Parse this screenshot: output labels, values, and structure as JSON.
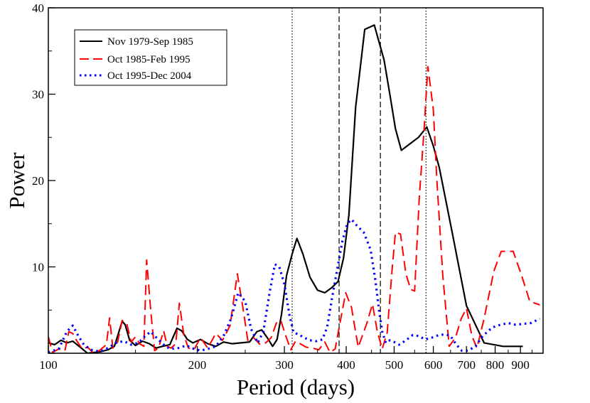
{
  "chart_data": {
    "type": "line",
    "xscale": "log",
    "xlabel": "Period (days)",
    "ylabel": "Power",
    "xlim": [
      100,
      1000
    ],
    "ylim": [
      0,
      40
    ],
    "xticks_major": [
      100,
      200,
      300,
      400,
      500,
      600,
      700,
      800,
      900
    ],
    "xtick_labels": [
      "100",
      "200",
      "300",
      "400",
      "500",
      "600",
      "700",
      "800",
      "900"
    ],
    "yticks_major": [
      0,
      10,
      20,
      30,
      40
    ],
    "ytick_labels": [
      "",
      "10",
      "20",
      "30",
      "40"
    ],
    "legend_position": "top-left",
    "reference_lines": [
      {
        "x": 311,
        "style": "dotted"
      },
      {
        "x": 387,
        "style": "dashed"
      },
      {
        "x": 469,
        "style": "dashed"
      },
      {
        "x": 580,
        "style": "dotted"
      }
    ],
    "series": [
      {
        "name": "Nov 1979-Sep 1985",
        "color": "#000000",
        "style": "solid",
        "points": [
          [
            100,
            1.2
          ],
          [
            103,
            1.0
          ],
          [
            106,
            1.5
          ],
          [
            109,
            1.2
          ],
          [
            112,
            1.4
          ],
          [
            116,
            0.7
          ],
          [
            120,
            0.0
          ],
          [
            124,
            0.1
          ],
          [
            128,
            0.2
          ],
          [
            132,
            0.4
          ],
          [
            136,
            0.8
          ],
          [
            141,
            3.7
          ],
          [
            143,
            3.3
          ],
          [
            146,
            1.5
          ],
          [
            150,
            0.9
          ],
          [
            155,
            1.4
          ],
          [
            160,
            1.1
          ],
          [
            165,
            0.6
          ],
          [
            170,
            0.8
          ],
          [
            176,
            1.0
          ],
          [
            182,
            2.9
          ],
          [
            186,
            2.6
          ],
          [
            191,
            1.6
          ],
          [
            196,
            1.2
          ],
          [
            203,
            1.6
          ],
          [
            210,
            1.1
          ],
          [
            218,
            0.8
          ],
          [
            226,
            1.3
          ],
          [
            235,
            1.1
          ],
          [
            245,
            1.2
          ],
          [
            255,
            1.3
          ],
          [
            264,
            2.5
          ],
          [
            270,
            2.7
          ],
          [
            277,
            1.8
          ],
          [
            284,
            0.8
          ],
          [
            290,
            1.6
          ],
          [
            296,
            4.5
          ],
          [
            303,
            9.0
          ],
          [
            311,
            11.5
          ],
          [
            318,
            13.3
          ],
          [
            327,
            11.5
          ],
          [
            338,
            8.8
          ],
          [
            350,
            7.3
          ],
          [
            362,
            7.0
          ],
          [
            374,
            7.6
          ],
          [
            385,
            8.3
          ],
          [
            395,
            11.0
          ],
          [
            405,
            16.0
          ],
          [
            418,
            28.5
          ],
          [
            436,
            37.5
          ],
          [
            456,
            38.0
          ],
          [
            477,
            34.0
          ],
          [
            490,
            30.0
          ],
          [
            503,
            26.0
          ],
          [
            517,
            23.5
          ],
          [
            560,
            25.0
          ],
          [
            582,
            26.2
          ],
          [
            600,
            24.0
          ],
          [
            617,
            21.5
          ],
          [
            655,
            14.0
          ],
          [
            700,
            5.5
          ],
          [
            760,
            1.2
          ],
          [
            830,
            0.8
          ],
          [
            880,
            0.8
          ],
          [
            910,
            0.8
          ]
        ]
      },
      {
        "name": "Oct 1985-Feb 1995",
        "color": "#ff0000",
        "style": "dashed",
        "points": [
          [
            100,
            1.9
          ],
          [
            102,
            0.1
          ],
          [
            105,
            0.5
          ],
          [
            108,
            0.3
          ],
          [
            110,
            2.5
          ],
          [
            112,
            2.3
          ],
          [
            114,
            1.5
          ],
          [
            117,
            0.5
          ],
          [
            120,
            0.7
          ],
          [
            123,
            0.1
          ],
          [
            126,
            0.2
          ],
          [
            128,
            0.5
          ],
          [
            131,
            1.0
          ],
          [
            133,
            4.1
          ],
          [
            135,
            0.6
          ],
          [
            138,
            1.3
          ],
          [
            141,
            3.8
          ],
          [
            144,
            3.5
          ],
          [
            147,
            1.3
          ],
          [
            150,
            1.9
          ],
          [
            153,
            1.1
          ],
          [
            156,
            0.8
          ],
          [
            158,
            10.8
          ],
          [
            161,
            5.0
          ],
          [
            164,
            0.3
          ],
          [
            167,
            0.6
          ],
          [
            171,
            2.6
          ],
          [
            174,
            0.8
          ],
          [
            177,
            0.6
          ],
          [
            181,
            1.1
          ],
          [
            184,
            5.8
          ],
          [
            188,
            2.0
          ],
          [
            192,
            0.6
          ],
          [
            197,
            0.4
          ],
          [
            203,
            1.8
          ],
          [
            210,
            0.6
          ],
          [
            218,
            2.3
          ],
          [
            225,
            1.5
          ],
          [
            233,
            3.2
          ],
          [
            241,
            9.2
          ],
          [
            247,
            5.5
          ],
          [
            253,
            1.5
          ],
          [
            260,
            1.8
          ],
          [
            268,
            1.0
          ],
          [
            275,
            1.2
          ],
          [
            282,
            1.8
          ],
          [
            289,
            3.5
          ],
          [
            295,
            3.8
          ],
          [
            302,
            2.0
          ],
          [
            309,
            0.4
          ],
          [
            316,
            1.4
          ],
          [
            323,
            1.1
          ],
          [
            332,
            0.7
          ],
          [
            342,
            0.6
          ],
          [
            352,
            0.4
          ],
          [
            362,
            1.3
          ],
          [
            371,
            0.1
          ],
          [
            380,
            0.5
          ],
          [
            390,
            4.0
          ],
          [
            399,
            7.0
          ],
          [
            410,
            5.3
          ],
          [
            423,
            0.7
          ],
          [
            440,
            3.4
          ],
          [
            452,
            5.7
          ],
          [
            462,
            2.6
          ],
          [
            473,
            0.5
          ],
          [
            484,
            2.4
          ],
          [
            495,
            9.5
          ],
          [
            503,
            14.0
          ],
          [
            515,
            13.8
          ],
          [
            528,
            9.2
          ],
          [
            540,
            7.4
          ],
          [
            550,
            7.2
          ],
          [
            562,
            18.0
          ],
          [
            575,
            26.0
          ],
          [
            585,
            33.2
          ],
          [
            600,
            28.2
          ],
          [
            610,
            20.0
          ],
          [
            627,
            9.0
          ],
          [
            646,
            0.8
          ],
          [
            665,
            1.8
          ],
          [
            683,
            4.0
          ],
          [
            700,
            5.2
          ],
          [
            718,
            2.0
          ],
          [
            735,
            0.6
          ],
          [
            760,
            4.0
          ],
          [
            795,
            9.5
          ],
          [
            823,
            11.8
          ],
          [
            870,
            11.8
          ],
          [
            905,
            9.0
          ],
          [
            940,
            6.0
          ],
          [
            985,
            5.6
          ]
        ]
      },
      {
        "name": "Oct 1995-Dec 2004",
        "color": "#0000ff",
        "style": "dotted",
        "points": [
          [
            100,
            0.1
          ],
          [
            105,
            0.5
          ],
          [
            109,
            2.5
          ],
          [
            112,
            3.2
          ],
          [
            115,
            2.0
          ],
          [
            118,
            1.0
          ],
          [
            122,
            0.4
          ],
          [
            127,
            0.2
          ],
          [
            132,
            0.6
          ],
          [
            137,
            1.2
          ],
          [
            142,
            1.4
          ],
          [
            147,
            1.0
          ],
          [
            152,
            1.2
          ],
          [
            157,
            2.0
          ],
          [
            161,
            2.5
          ],
          [
            166,
            1.7
          ],
          [
            171,
            1.0
          ],
          [
            176,
            0.5
          ],
          [
            183,
            0.6
          ],
          [
            190,
            0.9
          ],
          [
            197,
            0.5
          ],
          [
            203,
            0.3
          ],
          [
            210,
            0.5
          ],
          [
            218,
            0.8
          ],
          [
            226,
            2.0
          ],
          [
            234,
            4.0
          ],
          [
            242,
            7.0
          ],
          [
            250,
            6.0
          ],
          [
            257,
            2.8
          ],
          [
            265,
            1.2
          ],
          [
            272,
            2.5
          ],
          [
            280,
            7.0
          ],
          [
            287,
            10.3
          ],
          [
            293,
            10.0
          ],
          [
            300,
            8.0
          ],
          [
            307,
            4.5
          ],
          [
            313,
            2.4
          ],
          [
            320,
            2.2
          ],
          [
            329,
            1.8
          ],
          [
            338,
            1.5
          ],
          [
            348,
            1.4
          ],
          [
            358,
            1.6
          ],
          [
            366,
            3.0
          ],
          [
            374,
            6.2
          ],
          [
            383,
            9.5
          ],
          [
            393,
            13.0
          ],
          [
            402,
            15.0
          ],
          [
            410,
            15.5
          ],
          [
            420,
            14.8
          ],
          [
            434,
            14.0
          ],
          [
            448,
            12.0
          ],
          [
            458,
            8.5
          ],
          [
            466,
            5.0
          ],
          [
            473,
            2.5
          ],
          [
            481,
            1.2
          ],
          [
            490,
            1.5
          ],
          [
            500,
            1.3
          ],
          [
            512,
            1.0
          ],
          [
            528,
            1.5
          ],
          [
            545,
            2.1
          ],
          [
            560,
            2.0
          ],
          [
            578,
            1.6
          ],
          [
            595,
            1.8
          ],
          [
            615,
            2.1
          ],
          [
            635,
            2.2
          ],
          [
            650,
            2.0
          ],
          [
            668,
            1.0
          ],
          [
            685,
            0.3
          ],
          [
            705,
            0.3
          ],
          [
            730,
            0.8
          ],
          [
            755,
            2.0
          ],
          [
            790,
            3.0
          ],
          [
            820,
            3.3
          ],
          [
            850,
            3.5
          ],
          [
            880,
            3.3
          ],
          [
            910,
            3.4
          ],
          [
            945,
            3.5
          ],
          [
            985,
            4.0
          ]
        ]
      }
    ]
  }
}
